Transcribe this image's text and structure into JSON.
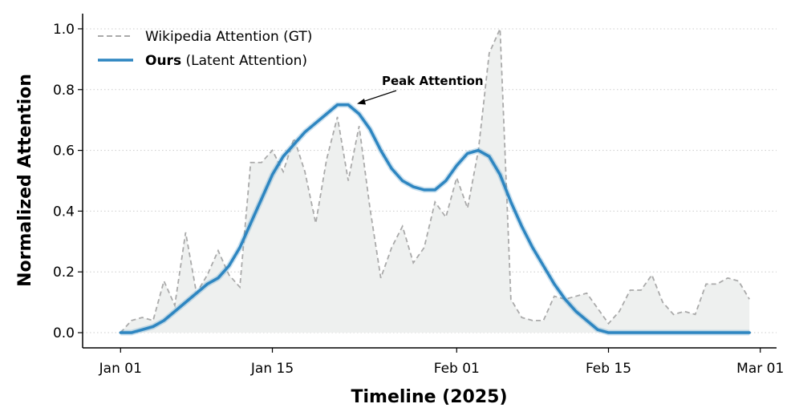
{
  "chart_data": {
    "type": "line",
    "title": "",
    "xlabel": "Timeline (2025)",
    "ylabel": "Normalized Attention",
    "xlim": [
      -3.5,
      60.5
    ],
    "ylim": [
      -0.05,
      1.05
    ],
    "grid": "horizontal dotted",
    "legend_position": "top-left",
    "x_ticks": [
      {
        "day": 0,
        "label": "Jan 01"
      },
      {
        "day": 14,
        "label": "Jan 15"
      },
      {
        "day": 31,
        "label": "Feb 01"
      },
      {
        "day": 45,
        "label": "Feb 15"
      },
      {
        "day": 59,
        "label": "Mar 01"
      }
    ],
    "y_ticks": [
      {
        "value": 0.0,
        "label": "0.0"
      },
      {
        "value": 0.2,
        "label": "0.2"
      },
      {
        "value": 0.4,
        "label": "0.4"
      },
      {
        "value": 0.6,
        "label": "0.6"
      },
      {
        "value": 0.8,
        "label": "0.8"
      },
      {
        "value": 1.0,
        "label": "1.0"
      }
    ],
    "series": [
      {
        "name": "Wikipedia Attention (GT)",
        "style": "dashed",
        "color": "#aaaaaa",
        "fill_color": "#eef0ef",
        "x": [
          0,
          1,
          2,
          3,
          4,
          5,
          6,
          7,
          8,
          9,
          10,
          11,
          12,
          13,
          14,
          15,
          16,
          17,
          18,
          19,
          20,
          21,
          22,
          23,
          24,
          25,
          26,
          27,
          28,
          29,
          30,
          31,
          32,
          33,
          34,
          35,
          36,
          37,
          38,
          39,
          40,
          41,
          42,
          43,
          44,
          45,
          46,
          47,
          48,
          49,
          50,
          51,
          52,
          53,
          54,
          55,
          56,
          57,
          58
        ],
        "values": [
          0.0,
          0.04,
          0.05,
          0.04,
          0.17,
          0.09,
          0.33,
          0.13,
          0.19,
          0.27,
          0.19,
          0.15,
          0.56,
          0.56,
          0.6,
          0.53,
          0.64,
          0.53,
          0.36,
          0.57,
          0.71,
          0.5,
          0.68,
          0.41,
          0.18,
          0.28,
          0.35,
          0.23,
          0.28,
          0.43,
          0.38,
          0.51,
          0.41,
          0.6,
          0.92,
          1.0,
          0.11,
          0.05,
          0.04,
          0.04,
          0.12,
          0.11,
          0.12,
          0.13,
          0.08,
          0.03,
          0.07,
          0.14,
          0.14,
          0.19,
          0.1,
          0.06,
          0.07,
          0.06,
          0.16,
          0.16,
          0.18,
          0.17,
          0.11
        ]
      },
      {
        "name_bold": "Ours",
        "name_rest": "(Latent Attention)",
        "style": "solid",
        "color": "#2e86c1",
        "x": [
          0,
          1,
          2,
          3,
          4,
          5,
          6,
          7,
          8,
          9,
          10,
          11,
          12,
          13,
          14,
          15,
          16,
          17,
          18,
          19,
          20,
          21,
          22,
          23,
          24,
          25,
          26,
          27,
          28,
          29,
          30,
          31,
          32,
          33,
          34,
          35,
          36,
          37,
          38,
          39,
          40,
          41,
          42,
          43,
          44,
          45,
          46,
          47,
          48,
          49,
          50,
          51,
          52,
          53,
          54,
          55,
          56,
          57,
          58
        ],
        "values": [
          0.0,
          0.0,
          0.01,
          0.02,
          0.04,
          0.07,
          0.1,
          0.13,
          0.16,
          0.18,
          0.22,
          0.28,
          0.36,
          0.44,
          0.52,
          0.58,
          0.62,
          0.66,
          0.69,
          0.72,
          0.75,
          0.75,
          0.72,
          0.67,
          0.6,
          0.54,
          0.5,
          0.48,
          0.47,
          0.47,
          0.5,
          0.55,
          0.59,
          0.6,
          0.58,
          0.52,
          0.43,
          0.35,
          0.28,
          0.22,
          0.16,
          0.11,
          0.07,
          0.04,
          0.01,
          0.0,
          0.0,
          0.0,
          0.0,
          0.0,
          0.0,
          0.0,
          0.0,
          0.0,
          0.0,
          0.0,
          0.0,
          0.0,
          0.0
        ]
      }
    ],
    "annotations": [
      {
        "text": "Peak Attention",
        "x": 21,
        "y": 0.75
      }
    ]
  }
}
